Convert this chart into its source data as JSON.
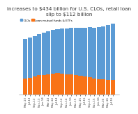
{
  "title_line1": "increases to $434 billion for U.S. CLOs, retail loan",
  "title_line2": "slip to $112 billion",
  "labels": [
    "May-13",
    "Jul-13",
    "Sep-13",
    "Nov-13",
    "Jan-14",
    "Mar-14",
    "May-14",
    "Jul-14",
    "Sep-14",
    "Nov-14",
    "Jan-15",
    "Mar-15",
    "May-15",
    "Jul-15",
    "Sep-15",
    "Nov-15",
    "Jan-16",
    "Mar-16",
    "May-16",
    "Jul-16"
  ],
  "clos": [
    300,
    305,
    312,
    318,
    322,
    328,
    332,
    338,
    345,
    350,
    358,
    362,
    368,
    374,
    380,
    388,
    396,
    408,
    420,
    434
  ],
  "loan_funds": [
    125,
    130,
    138,
    148,
    152,
    158,
    162,
    165,
    162,
    158,
    154,
    148,
    144,
    140,
    136,
    126,
    120,
    116,
    113,
    112
  ],
  "color_clos": "#5b9bd5",
  "color_loans": "#f97316",
  "legend_clos": "CLOs",
  "legend_loans": "Loan mutual funds & ETFs",
  "background_color": "#ffffff",
  "title_fontsize": 5.2,
  "tick_fontsize": 3.0,
  "ylim_max": 600
}
